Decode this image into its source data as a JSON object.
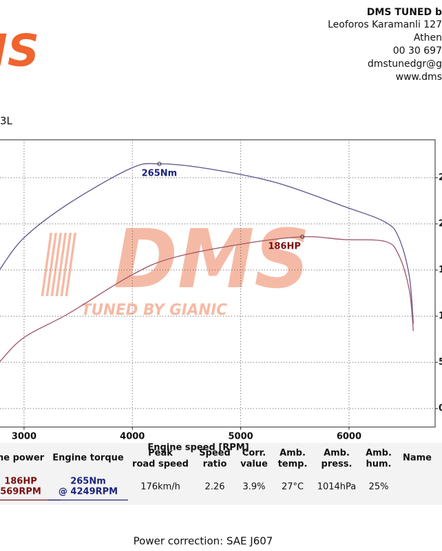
{
  "header": {
    "company": "DMS TUNED b",
    "address_lines": [
      "Leoforos Karamanli 127",
      "Athen",
      "00 30 697",
      "dmstunedgr@g",
      "www.dms"
    ]
  },
  "logo": "DMS",
  "title": "3L",
  "chart_data": {
    "type": "line",
    "x_label": "Engine speed [RPM]",
    "xlim": [
      2778,
      6795
    ],
    "ylim": [
      -20,
      291
    ],
    "xticks": [
      3000,
      4000,
      5000,
      6000
    ],
    "yticks": [
      {
        "value": 250,
        "label": "2"
      },
      {
        "value": 200,
        "label": "2"
      },
      {
        "value": 150,
        "label": "1"
      },
      {
        "value": 100,
        "label": "1"
      },
      {
        "value": 50,
        "label": "5"
      },
      0
    ],
    "y_axis_side": "right",
    "grid": true,
    "watermark": "DMS",
    "watermark_tagline": "TUNED BY GIANIC",
    "series": [
      {
        "color": "#6b5b95",
        "x": [
          2778,
          3000,
          3413,
          3984,
          4249,
          4683,
          5317,
          5952,
          6333,
          6460,
          6556,
          6594
        ],
        "values": [
          151,
          185,
          222,
          260,
          265,
          260,
          245,
          219,
          202,
          185,
          144,
          92
        ]
      },
      {
        "color": "#a35c6c",
        "x": [
          2778,
          3000,
          3413,
          3984,
          4365,
          5000,
          5569,
          5952,
          6333,
          6460,
          6556,
          6594
        ],
        "values": [
          51,
          77,
          103,
          144,
          163,
          178,
          186,
          183,
          181,
          166,
          129,
          84
        ]
      }
    ],
    "annotations": [
      {
        "text": "265Nm",
        "x": 4249,
        "y": 265,
        "color": "#1a237e"
      },
      {
        "text": "186HP",
        "x": 5569,
        "y": 186,
        "color": "#7b1010"
      }
    ]
  },
  "table": {
    "headers": [
      [
        "ne power"
      ],
      [
        "Engine torque"
      ],
      [
        "Peak",
        "road speed"
      ],
      [
        "Speed",
        "ratio"
      ],
      [
        "Corr.",
        "value"
      ],
      [
        "Amb.",
        "temp."
      ],
      [
        "Amb.",
        "press."
      ],
      [
        "Amb.",
        "hum."
      ],
      [
        "Name"
      ]
    ],
    "row": [
      [
        "186HP",
        "569RPM"
      ],
      [
        "265Nm",
        "@ 4249RPM"
      ],
      [
        "176km/h"
      ],
      [
        "2.26"
      ],
      [
        "3.9%"
      ],
      [
        "27°C"
      ],
      [
        "1014hPa"
      ],
      [
        "25%"
      ]
    ],
    "row_colors": [
      "#7b1010",
      "#1a237e"
    ]
  },
  "footer": "Power correction: SAE J607"
}
